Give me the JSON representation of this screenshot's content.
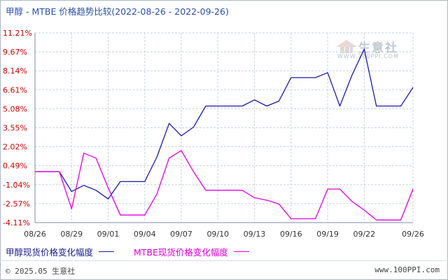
{
  "title": "甲醇 - MTBE 价格趋势比较(2022-08-26 - 2022-09-26)",
  "watermark": "生意社",
  "watermark_url": "WWW.100PPI.COM",
  "footer": {
    "copyright": "© 2025.05 生意社",
    "url": "www.100PPI.com"
  },
  "colors": {
    "series1": "#1a1aa6",
    "series2": "#e000e0",
    "ytick": "#cc0000",
    "grid": "#c9d3e0"
  },
  "chart_data": {
    "type": "line",
    "x": [
      "08/26",
      "08/27",
      "08/28",
      "08/29",
      "08/30",
      "08/31",
      "09/01",
      "09/02",
      "09/03",
      "09/04",
      "09/05",
      "09/06",
      "09/07",
      "09/08",
      "09/09",
      "09/10",
      "09/11",
      "09/12",
      "09/13",
      "09/14",
      "09/15",
      "09/16",
      "09/17",
      "09/18",
      "09/19",
      "09/20",
      "09/21",
      "09/22",
      "09/23",
      "09/24",
      "09/25",
      "09/26"
    ],
    "x_tick_labels": [
      "08/26",
      "08/29",
      "09/01",
      "09/04",
      "09/07",
      "09/10",
      "09/13",
      "09/16",
      "09/19",
      "09/22",
      "09/26"
    ],
    "y_tick_labels": [
      "11.21%",
      "9.67%",
      "8.14%",
      "6.61%",
      "5.08%",
      "3.55%",
      "2.02%",
      "0.49%",
      "-1.04%",
      "-2.57%",
      "-4.11%"
    ],
    "ylim": [
      -4.11,
      11.21
    ],
    "grid": true,
    "legend_position": "bottom-left",
    "series": [
      {
        "name": "甲醇现货价格变化幅度",
        "values": [
          0,
          0,
          0,
          -1.6,
          -1.1,
          -1.5,
          -2.2,
          -0.8,
          -0.8,
          -0.8,
          1.2,
          3.9,
          2.9,
          3.6,
          5.3,
          5.3,
          5.3,
          5.3,
          5.8,
          5.3,
          5.7,
          7.6,
          7.6,
          7.6,
          8.0,
          5.3,
          7.8,
          9.9,
          5.3,
          5.3,
          5.3,
          6.8
        ]
      },
      {
        "name": "MTBE现货价格变化幅度",
        "values": [
          0,
          0,
          0,
          -3.0,
          1.5,
          1.1,
          -1.3,
          -3.5,
          -3.5,
          -3.5,
          -1.8,
          1.1,
          1.7,
          0,
          -1.5,
          -1.5,
          -1.5,
          -1.5,
          -2.1,
          -2.3,
          -2.6,
          -3.8,
          -3.8,
          -3.8,
          -1.4,
          -1.4,
          -2.4,
          -3.1,
          -3.9,
          -3.9,
          -3.9,
          -1.4
        ]
      }
    ]
  }
}
